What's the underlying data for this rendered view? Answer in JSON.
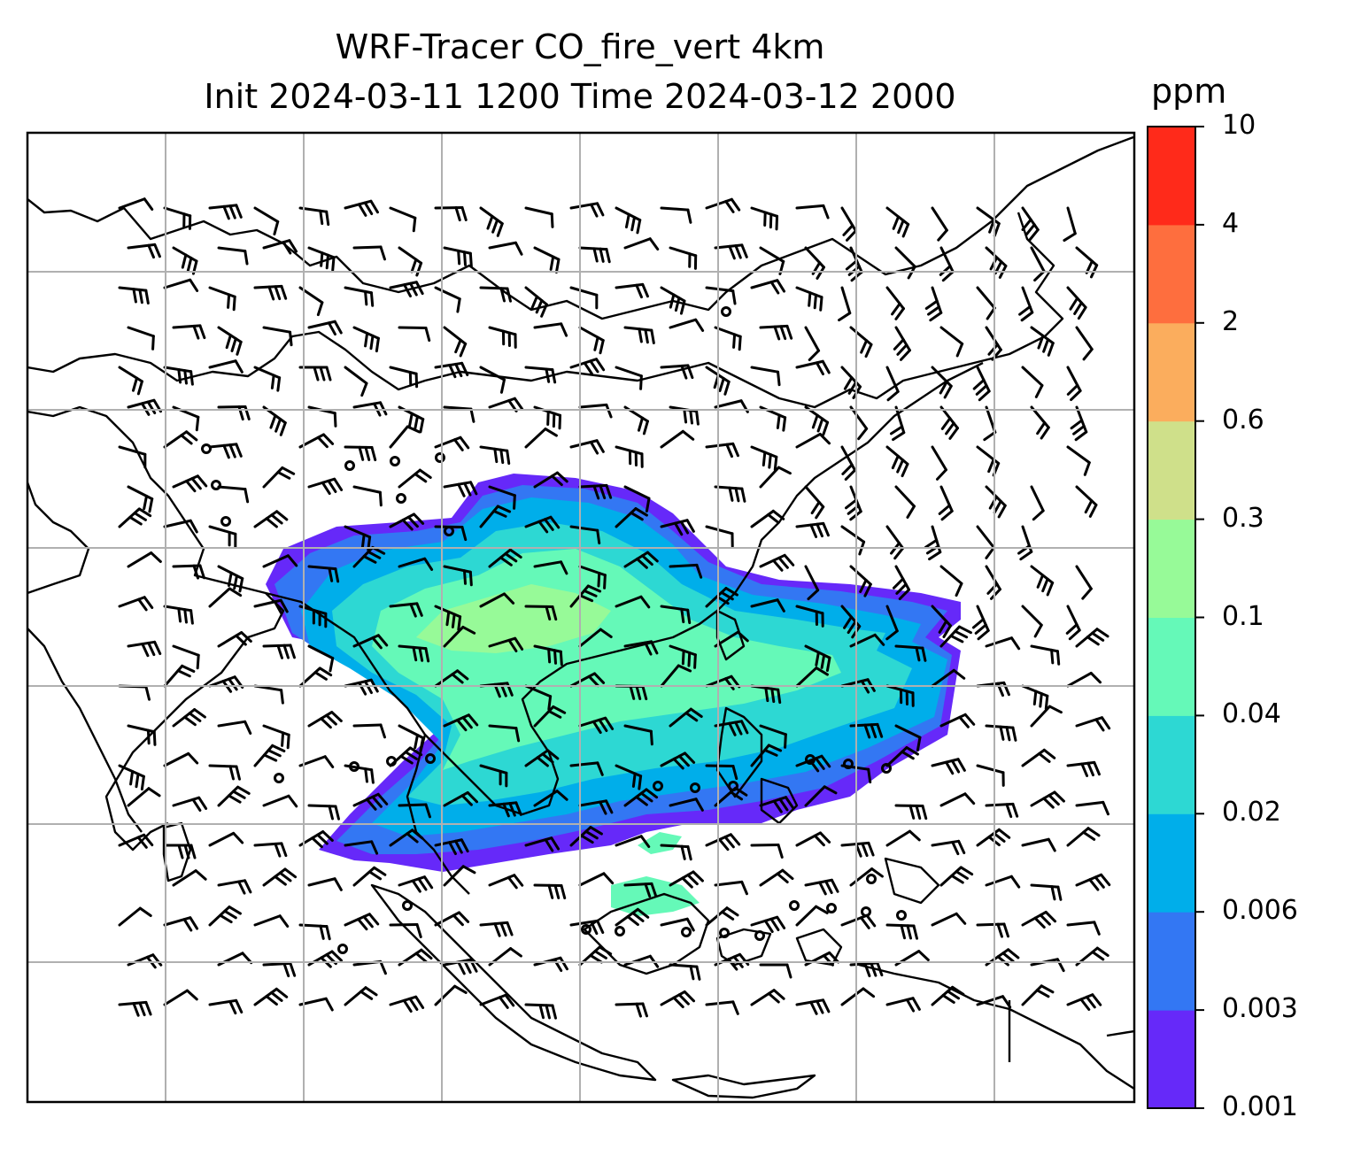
{
  "title": {
    "line1": "WRF-Tracer CO_fire_vert 4km",
    "line2": "Init 2024-03-11 1200 Time 2024-03-12 2000"
  },
  "colorbar": {
    "unit": "ppm",
    "levels": [
      "0.001",
      "0.003",
      "0.006",
      "0.02",
      "0.04",
      "0.1",
      "0.3",
      "0.6",
      "2",
      "4",
      "10"
    ],
    "colors": [
      "#6629f9",
      "#3377f3",
      "#00aeea",
      "#2dd8d3",
      "#65f9b8",
      "#97fa98",
      "#cfe08a",
      "#fbad5d",
      "#fe6e3e",
      "#ff2a1a"
    ]
  },
  "map": {
    "grid": "on",
    "features": [
      "coastlines",
      "country-borders",
      "wind-barbs",
      "calm-wind-circles",
      "tracer-plume"
    ],
    "plume_colors": [
      "#6629f9",
      "#3377f3",
      "#00aeea",
      "#2dd8d3",
      "#65f9b8",
      "#97fa98"
    ]
  }
}
